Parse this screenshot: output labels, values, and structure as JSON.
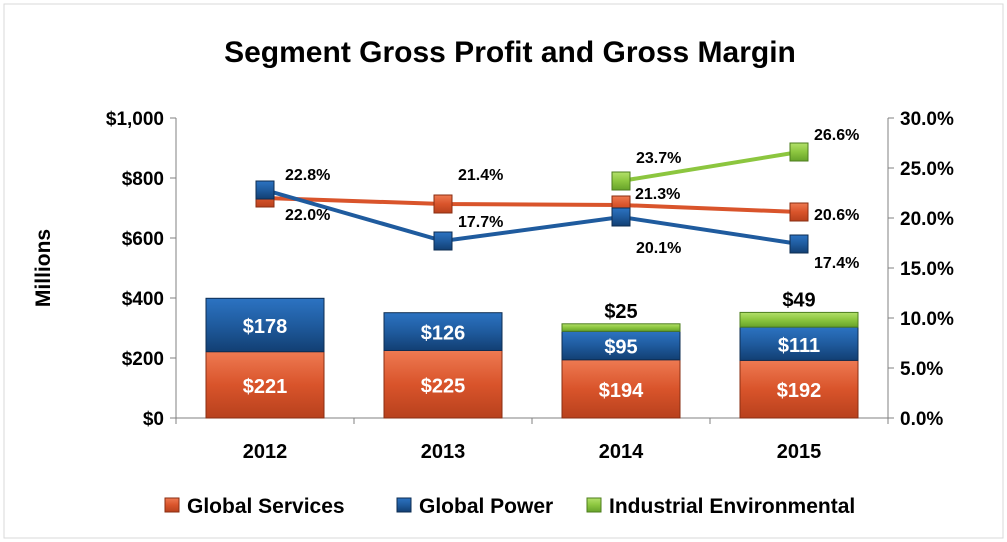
{
  "chart_data": {
    "type": "bar",
    "title": "Segment Gross Profit and Gross Margin",
    "ylabel": "Millions",
    "ylim": [
      0,
      1000
    ],
    "y2lim": [
      0,
      30
    ],
    "y_ticks": [
      "$0",
      "$200",
      "$400",
      "$600",
      "$800",
      "$1,000"
    ],
    "y2_ticks": [
      "0.0%",
      "5.0%",
      "10.0%",
      "15.0%",
      "20.0%",
      "25.0%",
      "30.0%"
    ],
    "categories": [
      "2012",
      "2013",
      "2014",
      "2015"
    ],
    "bar_series": [
      {
        "name": "Global Services",
        "values": [
          221,
          225,
          194,
          192
        ],
        "labels": [
          "$221",
          "$225",
          "$194",
          "$192"
        ],
        "color": "#d9542b"
      },
      {
        "name": "Global Power",
        "values": [
          178,
          126,
          95,
          111
        ],
        "labels": [
          "$178",
          "$126",
          "$95",
          "$111"
        ],
        "color": "#1f5b9e"
      },
      {
        "name": "Industrial Environmental",
        "values": [
          0,
          0,
          25,
          49
        ],
        "labels": [
          "",
          "",
          "$25",
          "$49"
        ],
        "color": "#8cc63f"
      }
    ],
    "line_series": [
      {
        "name": "Global Services",
        "values": [
          22.0,
          21.4,
          21.3,
          20.6
        ],
        "labels": [
          "22.0%",
          "21.4%",
          "21.3%",
          "20.6%"
        ],
        "color": "#d9542b"
      },
      {
        "name": "Global Power",
        "values": [
          22.8,
          17.7,
          20.1,
          17.4
        ],
        "labels": [
          "22.8%",
          "17.7%",
          "20.1%",
          "17.4%"
        ],
        "color": "#1f5b9e"
      },
      {
        "name": "Industrial Environmental",
        "values": [
          null,
          null,
          23.7,
          26.6
        ],
        "labels": [
          "",
          "",
          "23.7%",
          "26.6%"
        ],
        "color": "#8cc63f"
      }
    ],
    "legend": {
      "placement": "bottom",
      "entries": [
        "Global Services",
        "Global Power",
        "Industrial Environmental"
      ]
    },
    "grid": false
  }
}
